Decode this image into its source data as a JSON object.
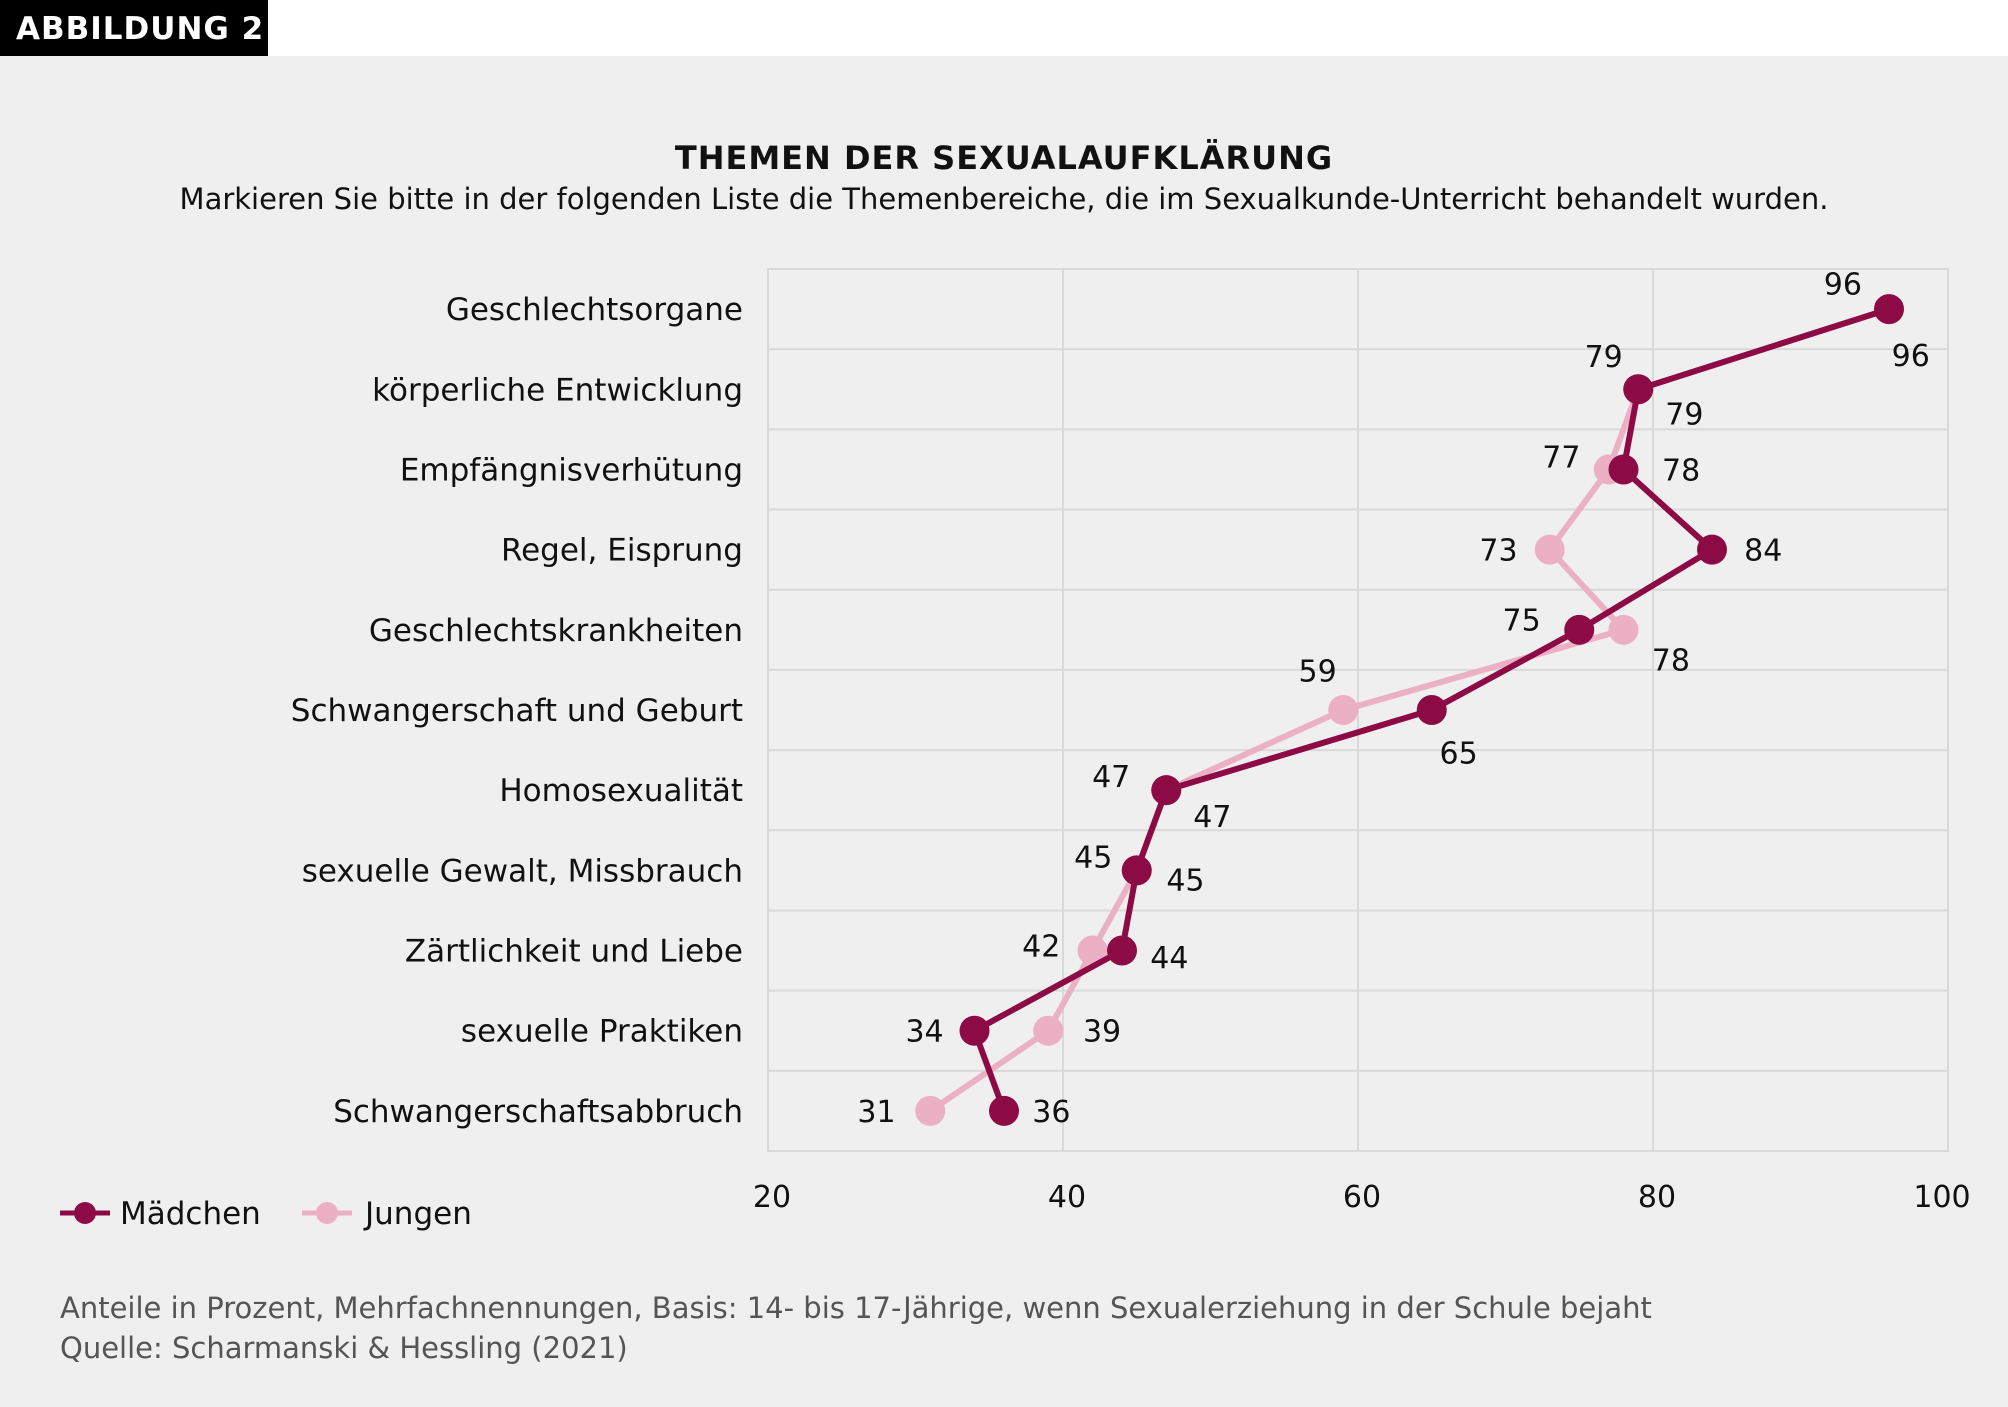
{
  "badge": "ABBILDUNG 2",
  "chart_data": {
    "type": "line",
    "title": "THEMEN DER SEXUALAUFKLÄRUNG",
    "subtitle": "Markieren Sie bitte in der folgenden Liste die Themenbereiche, die im Sexualkunde-Unterricht behandelt wurden.",
    "orientation": "horizontal",
    "categories": [
      "Geschlechtsorgane",
      "körperliche Entwicklung",
      "Empfängnisverhütung",
      "Regel, Eisprung",
      "Geschlechtskrankheiten",
      "Schwangerschaft und Geburt",
      "Homosexualität",
      "sexuelle Gewalt, Missbrauch",
      "Zärtlichkeit und Liebe",
      "sexuelle Praktiken",
      "Schwangerschaftsabbruch"
    ],
    "xlim": [
      20,
      100
    ],
    "xticks": [
      "20",
      "40",
      "60",
      "80",
      "100"
    ],
    "grid": true,
    "legend_position": "bottom-left",
    "series": [
      {
        "name": "Mädchen",
        "color": "#8c0b45",
        "values": [
          96,
          79,
          78,
          84,
          75,
          65,
          47,
          45,
          44,
          34,
          36
        ]
      },
      {
        "name": "Jungen",
        "color": "#ebb0c4",
        "values": [
          96,
          79,
          77,
          73,
          78,
          59,
          47,
          45,
          42,
          39,
          31
        ]
      }
    ],
    "footnote": [
      "Anteile in Prozent, Mehrfachnennungen, Basis: 14- bis 17-Jährige, wenn Sexualerziehung in der Schule bejaht",
      "Quelle: Scharmanski & Hessling (2021)"
    ]
  }
}
